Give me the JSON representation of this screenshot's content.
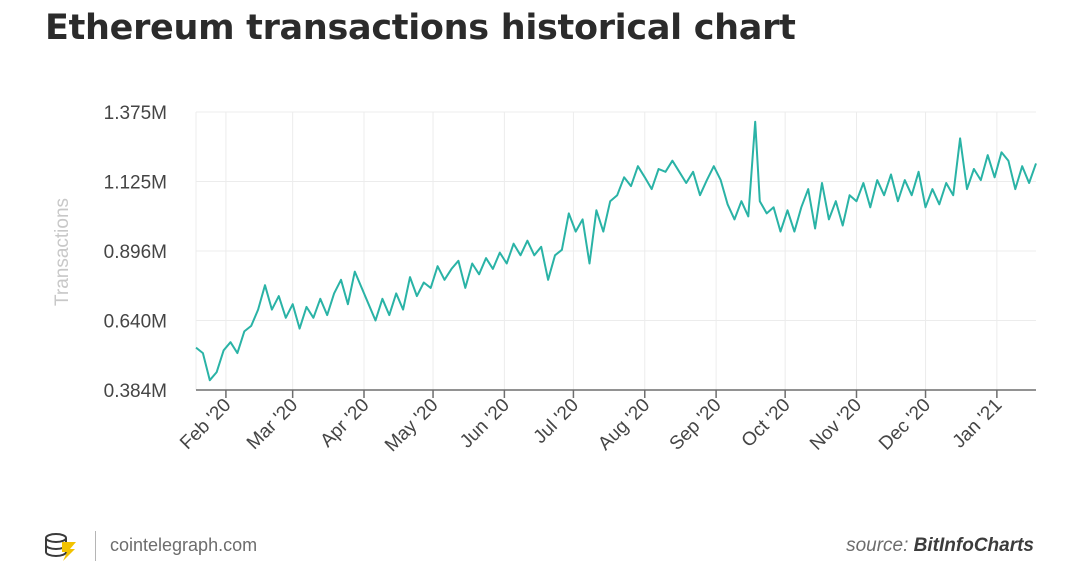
{
  "title": "Ethereum transactions historical chart",
  "footer": {
    "site": "cointelegraph.com",
    "source_prefix": "source:",
    "source_name": "BitInfoCharts"
  },
  "colors": {
    "line": "#2ab3a6",
    "grid": "#ececec",
    "axis": "#6e6e6e",
    "text": "#454545",
    "ylabel": "#c8c8c8"
  },
  "chart_data": {
    "type": "line",
    "title": "Ethereum transactions historical chart",
    "xlabel": "",
    "ylabel": "Transactions",
    "x_ticks": [
      "Feb '20",
      "Mar '20",
      "Apr '20",
      "May '20",
      "Jun '20",
      "Jul '20",
      "Aug '20",
      "Sep '20",
      "Oct '20",
      "Nov '20",
      "Dec '20",
      "Jan '21"
    ],
    "y_ticks": [
      "0.384M",
      "0.640M",
      "0.896M",
      "1.125M",
      "1.375M"
    ],
    "y_tick_values": [
      384000,
      640000,
      896000,
      1125000,
      1375000
    ],
    "ylim": [
      384000,
      1375000
    ],
    "xlim": [
      "2020-01-19",
      "2021-01-18"
    ],
    "grid": true,
    "series": [
      {
        "points": [
          [
            "2020-01-19",
            540000
          ],
          [
            "2020-01-22",
            520000
          ],
          [
            "2020-01-25",
            420000
          ],
          [
            "2020-01-28",
            450000
          ],
          [
            "2020-01-31",
            530000
          ],
          [
            "2020-02-03",
            560000
          ],
          [
            "2020-02-06",
            520000
          ],
          [
            "2020-02-09",
            600000
          ],
          [
            "2020-02-12",
            620000
          ],
          [
            "2020-02-15",
            680000
          ],
          [
            "2020-02-18",
            770000
          ],
          [
            "2020-02-21",
            680000
          ],
          [
            "2020-02-24",
            730000
          ],
          [
            "2020-02-27",
            650000
          ],
          [
            "2020-03-01",
            700000
          ],
          [
            "2020-03-04",
            610000
          ],
          [
            "2020-03-07",
            690000
          ],
          [
            "2020-03-10",
            650000
          ],
          [
            "2020-03-13",
            720000
          ],
          [
            "2020-03-16",
            660000
          ],
          [
            "2020-03-19",
            740000
          ],
          [
            "2020-03-22",
            790000
          ],
          [
            "2020-03-25",
            700000
          ],
          [
            "2020-03-28",
            820000
          ],
          [
            "2020-03-31",
            760000
          ],
          [
            "2020-04-03",
            700000
          ],
          [
            "2020-04-06",
            640000
          ],
          [
            "2020-04-09",
            720000
          ],
          [
            "2020-04-12",
            660000
          ],
          [
            "2020-04-15",
            740000
          ],
          [
            "2020-04-18",
            680000
          ],
          [
            "2020-04-21",
            800000
          ],
          [
            "2020-04-24",
            730000
          ],
          [
            "2020-04-27",
            780000
          ],
          [
            "2020-04-30",
            760000
          ],
          [
            "2020-05-03",
            840000
          ],
          [
            "2020-05-06",
            790000
          ],
          [
            "2020-05-09",
            830000
          ],
          [
            "2020-05-12",
            860000
          ],
          [
            "2020-05-15",
            760000
          ],
          [
            "2020-05-18",
            850000
          ],
          [
            "2020-05-21",
            810000
          ],
          [
            "2020-05-24",
            870000
          ],
          [
            "2020-05-27",
            830000
          ],
          [
            "2020-05-30",
            890000
          ],
          [
            "2020-06-02",
            850000
          ],
          [
            "2020-06-05",
            920000
          ],
          [
            "2020-06-08",
            880000
          ],
          [
            "2020-06-11",
            930000
          ],
          [
            "2020-06-14",
            880000
          ],
          [
            "2020-06-17",
            910000
          ],
          [
            "2020-06-20",
            790000
          ],
          [
            "2020-06-23",
            880000
          ],
          [
            "2020-06-26",
            900000
          ],
          [
            "2020-06-29",
            1020000
          ],
          [
            "2020-07-02",
            960000
          ],
          [
            "2020-07-05",
            1000000
          ],
          [
            "2020-07-08",
            850000
          ],
          [
            "2020-07-11",
            1030000
          ],
          [
            "2020-07-14",
            960000
          ],
          [
            "2020-07-17",
            1060000
          ],
          [
            "2020-07-20",
            1080000
          ],
          [
            "2020-07-23",
            1140000
          ],
          [
            "2020-07-26",
            1110000
          ],
          [
            "2020-07-29",
            1180000
          ],
          [
            "2020-08-01",
            1140000
          ],
          [
            "2020-08-04",
            1100000
          ],
          [
            "2020-08-07",
            1170000
          ],
          [
            "2020-08-10",
            1160000
          ],
          [
            "2020-08-13",
            1200000
          ],
          [
            "2020-08-16",
            1160000
          ],
          [
            "2020-08-19",
            1120000
          ],
          [
            "2020-08-22",
            1160000
          ],
          [
            "2020-08-25",
            1080000
          ],
          [
            "2020-08-28",
            1130000
          ],
          [
            "2020-08-31",
            1180000
          ],
          [
            "2020-09-03",
            1130000
          ],
          [
            "2020-09-06",
            1050000
          ],
          [
            "2020-09-09",
            1000000
          ],
          [
            "2020-09-12",
            1060000
          ],
          [
            "2020-09-15",
            1010000
          ],
          [
            "2020-09-18",
            1340000
          ],
          [
            "2020-09-20",
            1060000
          ],
          [
            "2020-09-23",
            1020000
          ],
          [
            "2020-09-26",
            1040000
          ],
          [
            "2020-09-29",
            960000
          ],
          [
            "2020-10-02",
            1030000
          ],
          [
            "2020-10-05",
            960000
          ],
          [
            "2020-10-08",
            1040000
          ],
          [
            "2020-10-11",
            1100000
          ],
          [
            "2020-10-14",
            970000
          ],
          [
            "2020-10-17",
            1120000
          ],
          [
            "2020-10-20",
            1000000
          ],
          [
            "2020-10-23",
            1060000
          ],
          [
            "2020-10-26",
            980000
          ],
          [
            "2020-10-29",
            1080000
          ],
          [
            "2020-11-01",
            1060000
          ],
          [
            "2020-11-04",
            1120000
          ],
          [
            "2020-11-07",
            1040000
          ],
          [
            "2020-11-10",
            1130000
          ],
          [
            "2020-11-13",
            1080000
          ],
          [
            "2020-11-16",
            1150000
          ],
          [
            "2020-11-19",
            1060000
          ],
          [
            "2020-11-22",
            1130000
          ],
          [
            "2020-11-25",
            1080000
          ],
          [
            "2020-11-28",
            1160000
          ],
          [
            "2020-12-01",
            1040000
          ],
          [
            "2020-12-04",
            1100000
          ],
          [
            "2020-12-07",
            1050000
          ],
          [
            "2020-12-10",
            1120000
          ],
          [
            "2020-12-13",
            1080000
          ],
          [
            "2020-12-16",
            1280000
          ],
          [
            "2020-12-19",
            1100000
          ],
          [
            "2020-12-22",
            1170000
          ],
          [
            "2020-12-25",
            1130000
          ],
          [
            "2020-12-28",
            1220000
          ],
          [
            "2020-12-31",
            1140000
          ],
          [
            "2021-01-03",
            1230000
          ],
          [
            "2021-01-06",
            1200000
          ],
          [
            "2021-01-09",
            1100000
          ],
          [
            "2021-01-12",
            1180000
          ],
          [
            "2021-01-15",
            1120000
          ],
          [
            "2021-01-18",
            1190000
          ]
        ]
      }
    ]
  }
}
